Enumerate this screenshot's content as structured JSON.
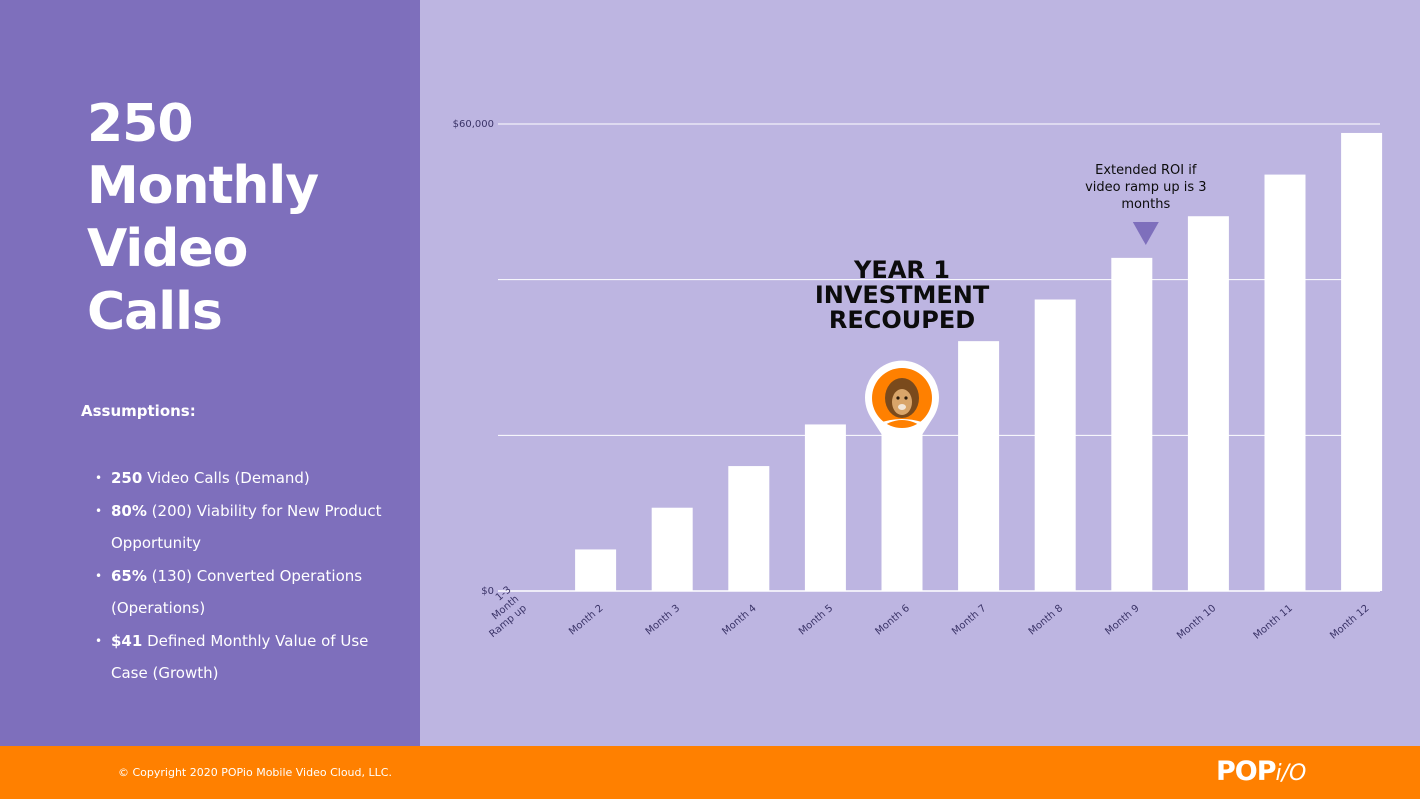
{
  "slide": {
    "title_lines": [
      "250",
      "Monthly",
      "Video",
      "Calls"
    ],
    "assumptions_heading": "Assumptions:",
    "assumptions": [
      {
        "bold": "250",
        "text": " Video Calls (Demand)"
      },
      {
        "bold": "80%",
        "text": " (200) Viability for New Product Opportunity"
      },
      {
        "bold": "65%",
        "text": " (130) Converted Operations (Operations)"
      },
      {
        "bold": "$41",
        "text": " Defined Monthly Value of Use Case (Growth)"
      }
    ],
    "copyright": "© Copyright 2020 POPio Mobile Video Cloud, LLC.",
    "logo": {
      "main": "POP",
      "suffix": "i/O"
    }
  },
  "colors": {
    "left_panel": "#7e6fbc",
    "chart_bg": "#bdb5e1",
    "footer": "#ff8000",
    "bars": "#ffffff",
    "marker_orange": "#ff8000",
    "arrow": "#7e6fbc"
  },
  "chart_data": {
    "type": "bar",
    "categories": [
      "1-3 Month Ramp up",
      "Month 2",
      "Month 3",
      "Month 4",
      "Month 5",
      "Month 6",
      "Month 7",
      "Month 8",
      "Month 9",
      "Month 10",
      "Month 11",
      "Month 12"
    ],
    "category_label_lines": [
      [
        "1-3",
        "Month",
        "Ramp up"
      ],
      [
        "Month 2"
      ],
      [
        "Month 3"
      ],
      [
        "Month 4"
      ],
      [
        "Month 5"
      ],
      [
        "Month 6"
      ],
      [
        "Month 7"
      ],
      [
        "Month 8"
      ],
      [
        "Month 9"
      ],
      [
        "Month 10"
      ],
      [
        "Month 11"
      ],
      [
        "Month 12"
      ]
    ],
    "values": [
      0,
      5340,
      10700,
      16050,
      21400,
      26750,
      32100,
      37450,
      42800,
      48150,
      53500,
      58850
    ],
    "ylim": [
      0,
      60000
    ],
    "y_ticks": [
      0,
      20000,
      40000,
      60000
    ],
    "y_tick_labels": [
      "$0",
      "",
      "",
      "$60,000"
    ],
    "grid": true,
    "annotations": {
      "recouped": {
        "category_index": 5,
        "lines": [
          "YEAR 1",
          "INVESTMENT",
          "RECOUPED"
        ],
        "icon": "lion-map-pin-icon"
      },
      "extended": {
        "category_index": 8,
        "lines": [
          "Extended ROI if",
          "video ramp up is 3",
          "months"
        ],
        "icon": "triangle-down-icon"
      }
    }
  }
}
